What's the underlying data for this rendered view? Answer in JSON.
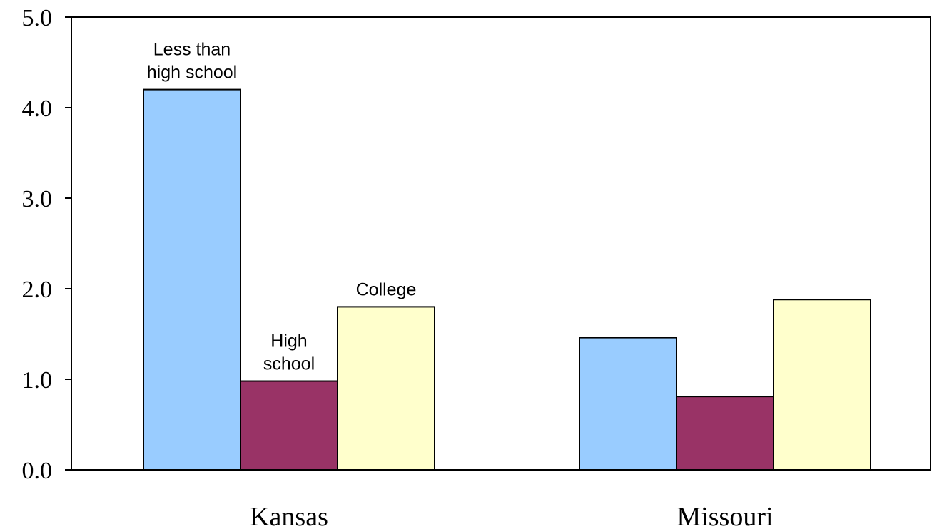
{
  "chart_data": {
    "type": "bar",
    "title": "",
    "xlabel": "",
    "ylabel": "",
    "ylim": [
      0,
      5
    ],
    "y_ticks": [
      "0.0",
      "1.0",
      "2.0",
      "3.0",
      "4.0",
      "5.0"
    ],
    "grid": false,
    "legend": "none",
    "categories": [
      "Kansas",
      "Missouri"
    ],
    "series": [
      {
        "label_lines": [
          "Less than",
          "high school"
        ],
        "color": "#99ccff",
        "values": [
          4.2,
          1.46
        ]
      },
      {
        "label_lines": [
          "High",
          "school"
        ],
        "color": "#993366",
        "values": [
          0.98,
          0.81
        ]
      },
      {
        "label_lines": [
          "College"
        ],
        "color": "#ffffcc",
        "values": [
          1.8,
          1.88
        ]
      }
    ]
  }
}
